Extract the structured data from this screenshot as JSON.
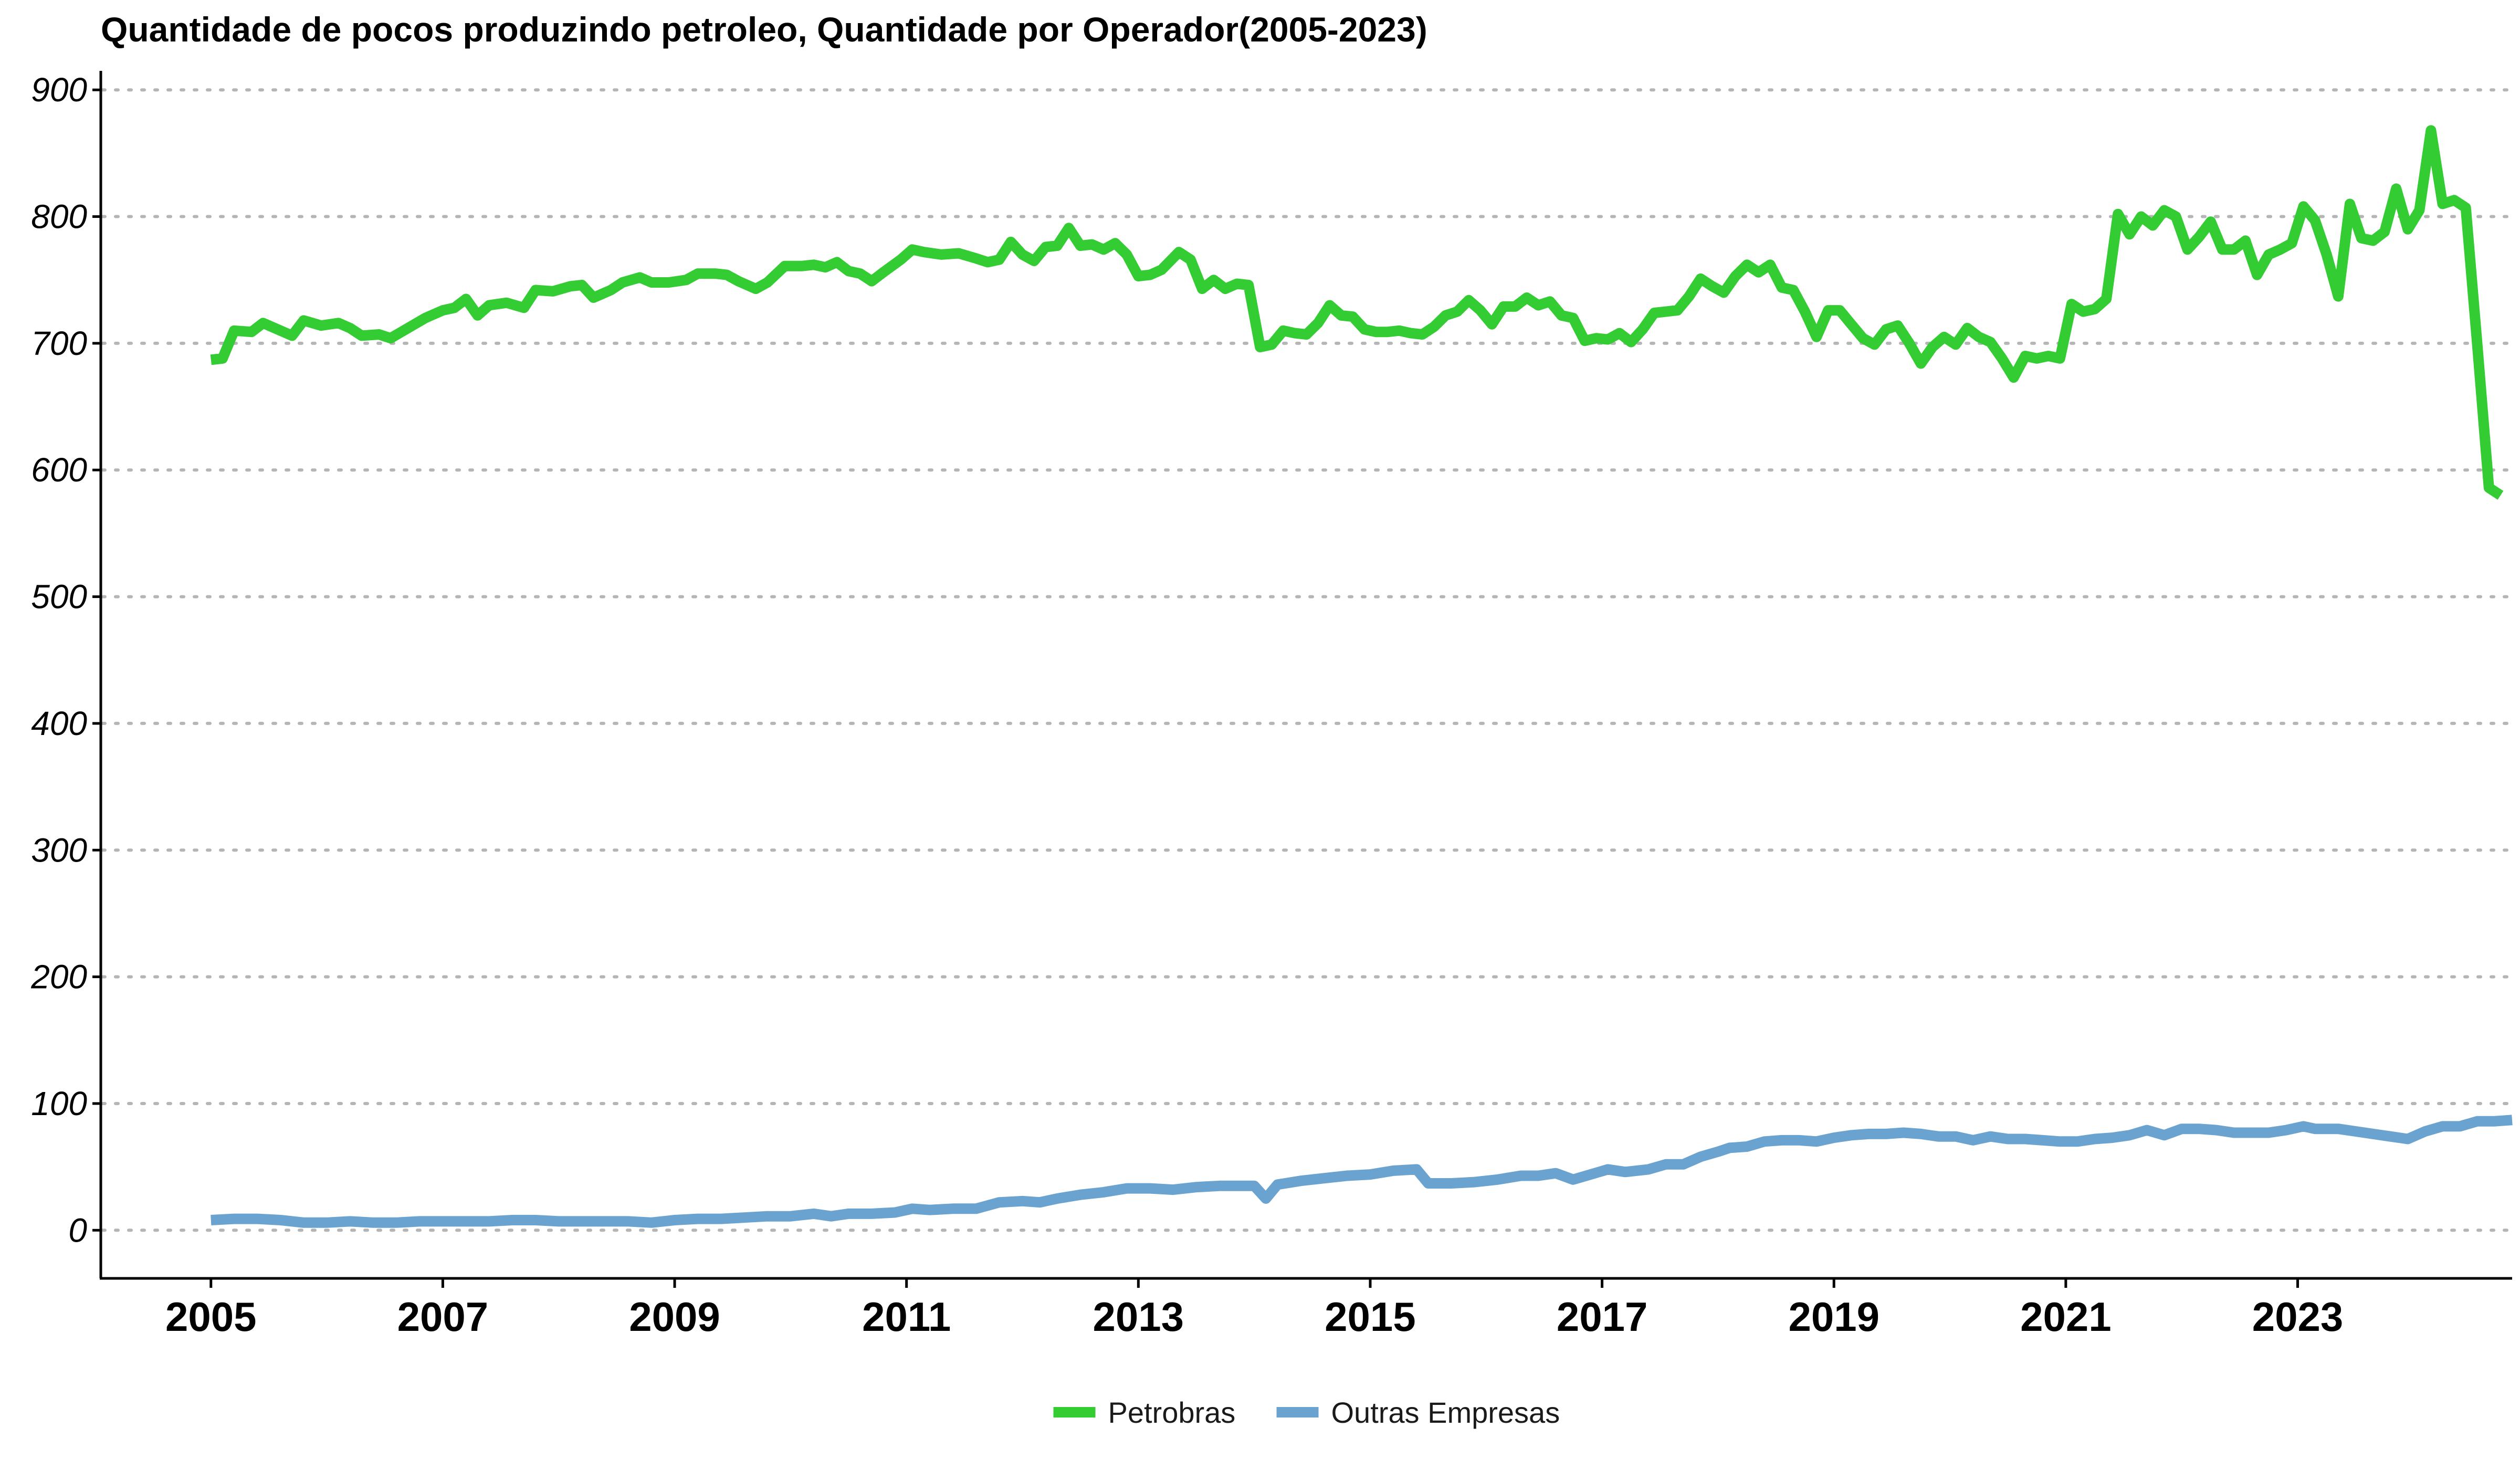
{
  "chart_data": {
    "type": "line",
    "title": "Quantidade de pocos produzindo petroleo, Quantidade por Operador(2005-2023)",
    "xlabel": "",
    "ylabel": "",
    "xlim": [
      2004.05,
      2024.85
    ],
    "ylim": [
      -38,
      915
    ],
    "x_ticks": [
      "2005",
      "2007",
      "2009",
      "2011",
      "2013",
      "2015",
      "2017",
      "2019",
      "2021",
      "2023"
    ],
    "y_ticks": [
      "0",
      "100",
      "200",
      "300",
      "400",
      "500",
      "600",
      "700",
      "800",
      "900"
    ],
    "grid": "horizontal dotted",
    "legend_position": "bottom",
    "series": [
      {
        "name": "Petrobras",
        "color": "#33cc33",
        "points": [
          [
            2005.0,
            687
          ],
          [
            2005.1,
            688
          ],
          [
            2005.2,
            710
          ],
          [
            2005.35,
            709
          ],
          [
            2005.45,
            716
          ],
          [
            2005.55,
            712
          ],
          [
            2005.7,
            706
          ],
          [
            2005.8,
            718
          ],
          [
            2005.95,
            714
          ],
          [
            2006.1,
            716
          ],
          [
            2006.2,
            712
          ],
          [
            2006.3,
            706
          ],
          [
            2006.45,
            707
          ],
          [
            2006.55,
            704
          ],
          [
            2006.7,
            712
          ],
          [
            2006.85,
            720
          ],
          [
            2007.0,
            726
          ],
          [
            2007.1,
            728
          ],
          [
            2007.2,
            735
          ],
          [
            2007.3,
            722
          ],
          [
            2007.4,
            730
          ],
          [
            2007.55,
            732
          ],
          [
            2007.7,
            728
          ],
          [
            2007.8,
            742
          ],
          [
            2007.95,
            741
          ],
          [
            2008.1,
            745
          ],
          [
            2008.2,
            746
          ],
          [
            2008.3,
            736
          ],
          [
            2008.45,
            742
          ],
          [
            2008.55,
            748
          ],
          [
            2008.7,
            752
          ],
          [
            2008.8,
            748
          ],
          [
            2008.95,
            748
          ],
          [
            2009.1,
            750
          ],
          [
            2009.2,
            755
          ],
          [
            2009.35,
            755
          ],
          [
            2009.45,
            754
          ],
          [
            2009.55,
            749
          ],
          [
            2009.7,
            743
          ],
          [
            2009.8,
            748
          ],
          [
            2009.95,
            761
          ],
          [
            2010.1,
            761
          ],
          [
            2010.2,
            762
          ],
          [
            2010.3,
            760
          ],
          [
            2010.4,
            764
          ],
          [
            2010.5,
            757
          ],
          [
            2010.6,
            755
          ],
          [
            2010.7,
            749
          ],
          [
            2010.8,
            756
          ],
          [
            2010.95,
            766
          ],
          [
            2011.05,
            774
          ],
          [
            2011.15,
            772
          ],
          [
            2011.3,
            770
          ],
          [
            2011.45,
            771
          ],
          [
            2011.6,
            767
          ],
          [
            2011.7,
            764
          ],
          [
            2011.8,
            766
          ],
          [
            2011.9,
            780
          ],
          [
            2012.0,
            770
          ],
          [
            2012.1,
            765
          ],
          [
            2012.2,
            776
          ],
          [
            2012.3,
            777
          ],
          [
            2012.4,
            791
          ],
          [
            2012.5,
            777
          ],
          [
            2012.6,
            778
          ],
          [
            2012.7,
            774
          ],
          [
            2012.8,
            779
          ],
          [
            2012.9,
            770
          ],
          [
            2013.0,
            753
          ],
          [
            2013.1,
            754
          ],
          [
            2013.2,
            758
          ],
          [
            2013.35,
            772
          ],
          [
            2013.45,
            766
          ],
          [
            2013.55,
            743
          ],
          [
            2013.65,
            750
          ],
          [
            2013.75,
            743
          ],
          [
            2013.85,
            747
          ],
          [
            2013.95,
            746
          ],
          [
            2014.05,
            697
          ],
          [
            2014.15,
            699
          ],
          [
            2014.25,
            710
          ],
          [
            2014.35,
            708
          ],
          [
            2014.45,
            707
          ],
          [
            2014.55,
            716
          ],
          [
            2014.65,
            730
          ],
          [
            2014.75,
            722
          ],
          [
            2014.85,
            721
          ],
          [
            2014.95,
            711
          ],
          [
            2015.05,
            709
          ],
          [
            2015.15,
            709
          ],
          [
            2015.25,
            710
          ],
          [
            2015.35,
            708
          ],
          [
            2015.45,
            707
          ],
          [
            2015.55,
            713
          ],
          [
            2015.65,
            722
          ],
          [
            2015.75,
            725
          ],
          [
            2015.85,
            734
          ],
          [
            2015.95,
            726
          ],
          [
            2016.05,
            715
          ],
          [
            2016.15,
            729
          ],
          [
            2016.25,
            729
          ],
          [
            2016.35,
            736
          ],
          [
            2016.45,
            730
          ],
          [
            2016.55,
            733
          ],
          [
            2016.65,
            722
          ],
          [
            2016.75,
            720
          ],
          [
            2016.85,
            702
          ],
          [
            2016.95,
            704
          ],
          [
            2017.05,
            703
          ],
          [
            2017.15,
            708
          ],
          [
            2017.25,
            701
          ],
          [
            2017.35,
            711
          ],
          [
            2017.45,
            724
          ],
          [
            2017.55,
            725
          ],
          [
            2017.65,
            726
          ],
          [
            2017.75,
            737
          ],
          [
            2017.85,
            751
          ],
          [
            2017.95,
            745
          ],
          [
            2018.05,
            740
          ],
          [
            2018.15,
            753
          ],
          [
            2018.25,
            762
          ],
          [
            2018.35,
            756
          ],
          [
            2018.45,
            762
          ],
          [
            2018.55,
            744
          ],
          [
            2018.65,
            742
          ],
          [
            2018.75,
            725
          ],
          [
            2018.85,
            705
          ],
          [
            2018.95,
            726
          ],
          [
            2019.05,
            726
          ],
          [
            2019.15,
            715
          ],
          [
            2019.25,
            704
          ],
          [
            2019.35,
            699
          ],
          [
            2019.45,
            711
          ],
          [
            2019.55,
            714
          ],
          [
            2019.65,
            700
          ],
          [
            2019.75,
            684
          ],
          [
            2019.85,
            697
          ],
          [
            2019.95,
            705
          ],
          [
            2020.05,
            699
          ],
          [
            2020.15,
            712
          ],
          [
            2020.25,
            705
          ],
          [
            2020.35,
            701
          ],
          [
            2020.45,
            688
          ],
          [
            2020.55,
            673
          ],
          [
            2020.65,
            690
          ],
          [
            2020.75,
            688
          ],
          [
            2020.85,
            690
          ],
          [
            2020.95,
            688
          ],
          [
            2021.05,
            731
          ],
          [
            2021.15,
            725
          ],
          [
            2021.25,
            727
          ],
          [
            2021.35,
            735
          ],
          [
            2021.45,
            802
          ],
          [
            2021.55,
            786
          ],
          [
            2021.65,
            800
          ],
          [
            2021.75,
            793
          ],
          [
            2021.85,
            805
          ],
          [
            2021.95,
            800
          ],
          [
            2022.05,
            774
          ],
          [
            2022.15,
            784
          ],
          [
            2022.25,
            796
          ],
          [
            2022.35,
            774
          ],
          [
            2022.45,
            774
          ],
          [
            2022.55,
            781
          ],
          [
            2022.65,
            754
          ],
          [
            2022.75,
            770
          ],
          [
            2022.85,
            774
          ],
          [
            2022.95,
            779
          ],
          [
            2023.05,
            808
          ],
          [
            2023.15,
            797
          ],
          [
            2023.25,
            770
          ],
          [
            2023.35,
            737
          ],
          [
            2023.45,
            810
          ],
          [
            2023.55,
            783
          ],
          [
            2023.65,
            781
          ],
          [
            2023.75,
            788
          ],
          [
            2023.85,
            822
          ],
          [
            2023.95,
            790
          ],
          [
            2024.05,
            805
          ],
          [
            2024.15,
            868
          ],
          [
            2024.25,
            810
          ],
          [
            2024.35,
            813
          ],
          [
            2024.45,
            807
          ],
          [
            2024.55,
            698
          ],
          [
            2024.65,
            586
          ],
          [
            2024.75,
            580
          ]
        ]
      },
      {
        "name": "Outras Empresas",
        "color": "#6aa3d0",
        "points": [
          [
            2005.0,
            8
          ],
          [
            2005.2,
            9
          ],
          [
            2005.4,
            9
          ],
          [
            2005.6,
            8
          ],
          [
            2005.8,
            6
          ],
          [
            2006.0,
            6
          ],
          [
            2006.2,
            7
          ],
          [
            2006.4,
            6
          ],
          [
            2006.6,
            6
          ],
          [
            2006.8,
            7
          ],
          [
            2007.0,
            7
          ],
          [
            2007.2,
            7
          ],
          [
            2007.4,
            7
          ],
          [
            2007.6,
            8
          ],
          [
            2007.8,
            8
          ],
          [
            2008.0,
            7
          ],
          [
            2008.2,
            7
          ],
          [
            2008.4,
            7
          ],
          [
            2008.6,
            7
          ],
          [
            2008.8,
            6
          ],
          [
            2009.0,
            8
          ],
          [
            2009.2,
            9
          ],
          [
            2009.4,
            9
          ],
          [
            2009.6,
            10
          ],
          [
            2009.8,
            11
          ],
          [
            2010.0,
            11
          ],
          [
            2010.2,
            13
          ],
          [
            2010.35,
            11
          ],
          [
            2010.5,
            13
          ],
          [
            2010.7,
            13
          ],
          [
            2010.9,
            14
          ],
          [
            2011.05,
            17
          ],
          [
            2011.2,
            16
          ],
          [
            2011.4,
            17
          ],
          [
            2011.6,
            17
          ],
          [
            2011.8,
            22
          ],
          [
            2012.0,
            23
          ],
          [
            2012.15,
            22
          ],
          [
            2012.3,
            25
          ],
          [
            2012.5,
            28
          ],
          [
            2012.7,
            30
          ],
          [
            2012.9,
            33
          ],
          [
            2013.1,
            33
          ],
          [
            2013.3,
            32
          ],
          [
            2013.5,
            34
          ],
          [
            2013.7,
            35
          ],
          [
            2013.9,
            35
          ],
          [
            2014.0,
            35
          ],
          [
            2014.1,
            25
          ],
          [
            2014.2,
            36
          ],
          [
            2014.4,
            39
          ],
          [
            2014.6,
            41
          ],
          [
            2014.8,
            43
          ],
          [
            2015.0,
            44
          ],
          [
            2015.2,
            47
          ],
          [
            2015.4,
            48
          ],
          [
            2015.5,
            37
          ],
          [
            2015.7,
            37
          ],
          [
            2015.9,
            38
          ],
          [
            2016.1,
            40
          ],
          [
            2016.3,
            43
          ],
          [
            2016.45,
            43
          ],
          [
            2016.6,
            45
          ],
          [
            2016.75,
            40
          ],
          [
            2016.9,
            44
          ],
          [
            2017.05,
            48
          ],
          [
            2017.2,
            46
          ],
          [
            2017.4,
            48
          ],
          [
            2017.55,
            52
          ],
          [
            2017.7,
            52
          ],
          [
            2017.85,
            58
          ],
          [
            2018.0,
            62
          ],
          [
            2018.1,
            65
          ],
          [
            2018.25,
            66
          ],
          [
            2018.4,
            70
          ],
          [
            2018.55,
            71
          ],
          [
            2018.7,
            71
          ],
          [
            2018.85,
            70
          ],
          [
            2019.0,
            73
          ],
          [
            2019.15,
            75
          ],
          [
            2019.3,
            76
          ],
          [
            2019.45,
            76
          ],
          [
            2019.6,
            77
          ],
          [
            2019.75,
            76
          ],
          [
            2019.9,
            74
          ],
          [
            2020.05,
            74
          ],
          [
            2020.2,
            71
          ],
          [
            2020.35,
            74
          ],
          [
            2020.5,
            72
          ],
          [
            2020.65,
            72
          ],
          [
            2020.8,
            71
          ],
          [
            2020.95,
            70
          ],
          [
            2021.1,
            70
          ],
          [
            2021.25,
            72
          ],
          [
            2021.4,
            73
          ],
          [
            2021.55,
            75
          ],
          [
            2021.7,
            79
          ],
          [
            2021.85,
            75
          ],
          [
            2022.0,
            80
          ],
          [
            2022.15,
            80
          ],
          [
            2022.3,
            79
          ],
          [
            2022.45,
            77
          ],
          [
            2022.6,
            77
          ],
          [
            2022.75,
            77
          ],
          [
            2022.9,
            79
          ],
          [
            2023.05,
            82
          ],
          [
            2023.15,
            80
          ],
          [
            2023.25,
            80
          ],
          [
            2023.35,
            80
          ],
          [
            2023.5,
            78
          ],
          [
            2023.65,
            76
          ],
          [
            2023.8,
            74
          ],
          [
            2023.95,
            72
          ],
          [
            2024.1,
            78
          ],
          [
            2024.25,
            82
          ],
          [
            2024.4,
            82
          ],
          [
            2024.55,
            86
          ],
          [
            2024.7,
            86
          ],
          [
            2024.85,
            87
          ]
        ]
      }
    ]
  }
}
